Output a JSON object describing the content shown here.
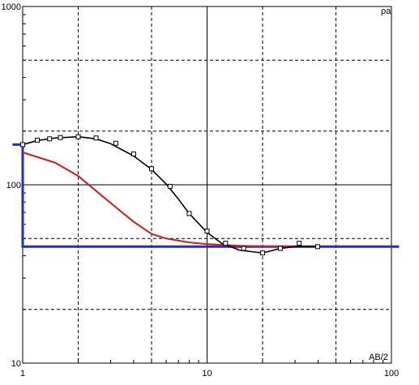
{
  "chart_data": {
    "type": "line",
    "x_scale": "log",
    "y_scale": "log",
    "xlim": [
      1,
      100
    ],
    "ylim": [
      10,
      1000
    ],
    "grid": "major solid, intermediate dashed",
    "xlabel": "AB/2",
    "ylabel": "ρa",
    "x_tick_labels": [
      "1",
      "10",
      "100"
    ],
    "y_tick_labels": [
      "10",
      "100",
      "1000"
    ],
    "colors": {
      "background": "#ffffff",
      "axis": "#000000",
      "grid": "#000000",
      "curve": "#000000",
      "model": "#d01c1c",
      "layers": "#1a2fd6",
      "marker_fill": "#ffffff"
    },
    "series": [
      {
        "key": "fitted_curve",
        "style": "black line",
        "points": [
          [
            1.0,
            168
          ],
          [
            1.2,
            177
          ],
          [
            1.5,
            183
          ],
          [
            2.0,
            186
          ],
          [
            2.5,
            181
          ],
          [
            3.0,
            170
          ],
          [
            4.0,
            145
          ],
          [
            5.0,
            122
          ],
          [
            6.0,
            101
          ],
          [
            7.0,
            83
          ],
          [
            8.0,
            69
          ],
          [
            10.0,
            54
          ],
          [
            12.0,
            47
          ],
          [
            15.0,
            43
          ],
          [
            18.0,
            42
          ],
          [
            20.0,
            41.5
          ],
          [
            22.0,
            42.5
          ],
          [
            25.0,
            44
          ],
          [
            30.0,
            45
          ],
          [
            35.0,
            45
          ],
          [
            40.0,
            45
          ]
        ]
      },
      {
        "key": "observed_points",
        "style": "white square markers",
        "points": [
          [
            1.0,
            168
          ],
          [
            1.2,
            178
          ],
          [
            1.4,
            181
          ],
          [
            1.6,
            184
          ],
          [
            2.0,
            186
          ],
          [
            2.5,
            183
          ],
          [
            3.2,
            171
          ],
          [
            4.0,
            149
          ],
          [
            5.0,
            123
          ],
          [
            6.3,
            98
          ],
          [
            8.0,
            69
          ],
          [
            10.0,
            55
          ],
          [
            12.6,
            47
          ],
          [
            15.8,
            44
          ],
          [
            20.0,
            41.5
          ],
          [
            25.0,
            44
          ],
          [
            31.6,
            47
          ],
          [
            39.8,
            45
          ]
        ]
      },
      {
        "key": "model_response",
        "style": "red line",
        "points": [
          [
            1.0,
            152
          ],
          [
            1.5,
            133
          ],
          [
            2.0,
            112
          ],
          [
            3.0,
            79
          ],
          [
            4.0,
            62
          ],
          [
            5.0,
            53
          ],
          [
            6.0,
            50
          ],
          [
            8.0,
            47.5
          ],
          [
            10.0,
            46.5
          ],
          [
            15.0,
            45.5
          ],
          [
            20.0,
            45.2
          ],
          [
            30.0,
            45.1
          ],
          [
            40.0,
            45
          ]
        ]
      },
      {
        "key": "layer_model",
        "style": "blue step line",
        "points": [
          [
            0.88,
            168
          ],
          [
            1.0,
            168
          ],
          [
            1.0,
            45
          ],
          [
            110,
            45
          ]
        ]
      }
    ]
  }
}
